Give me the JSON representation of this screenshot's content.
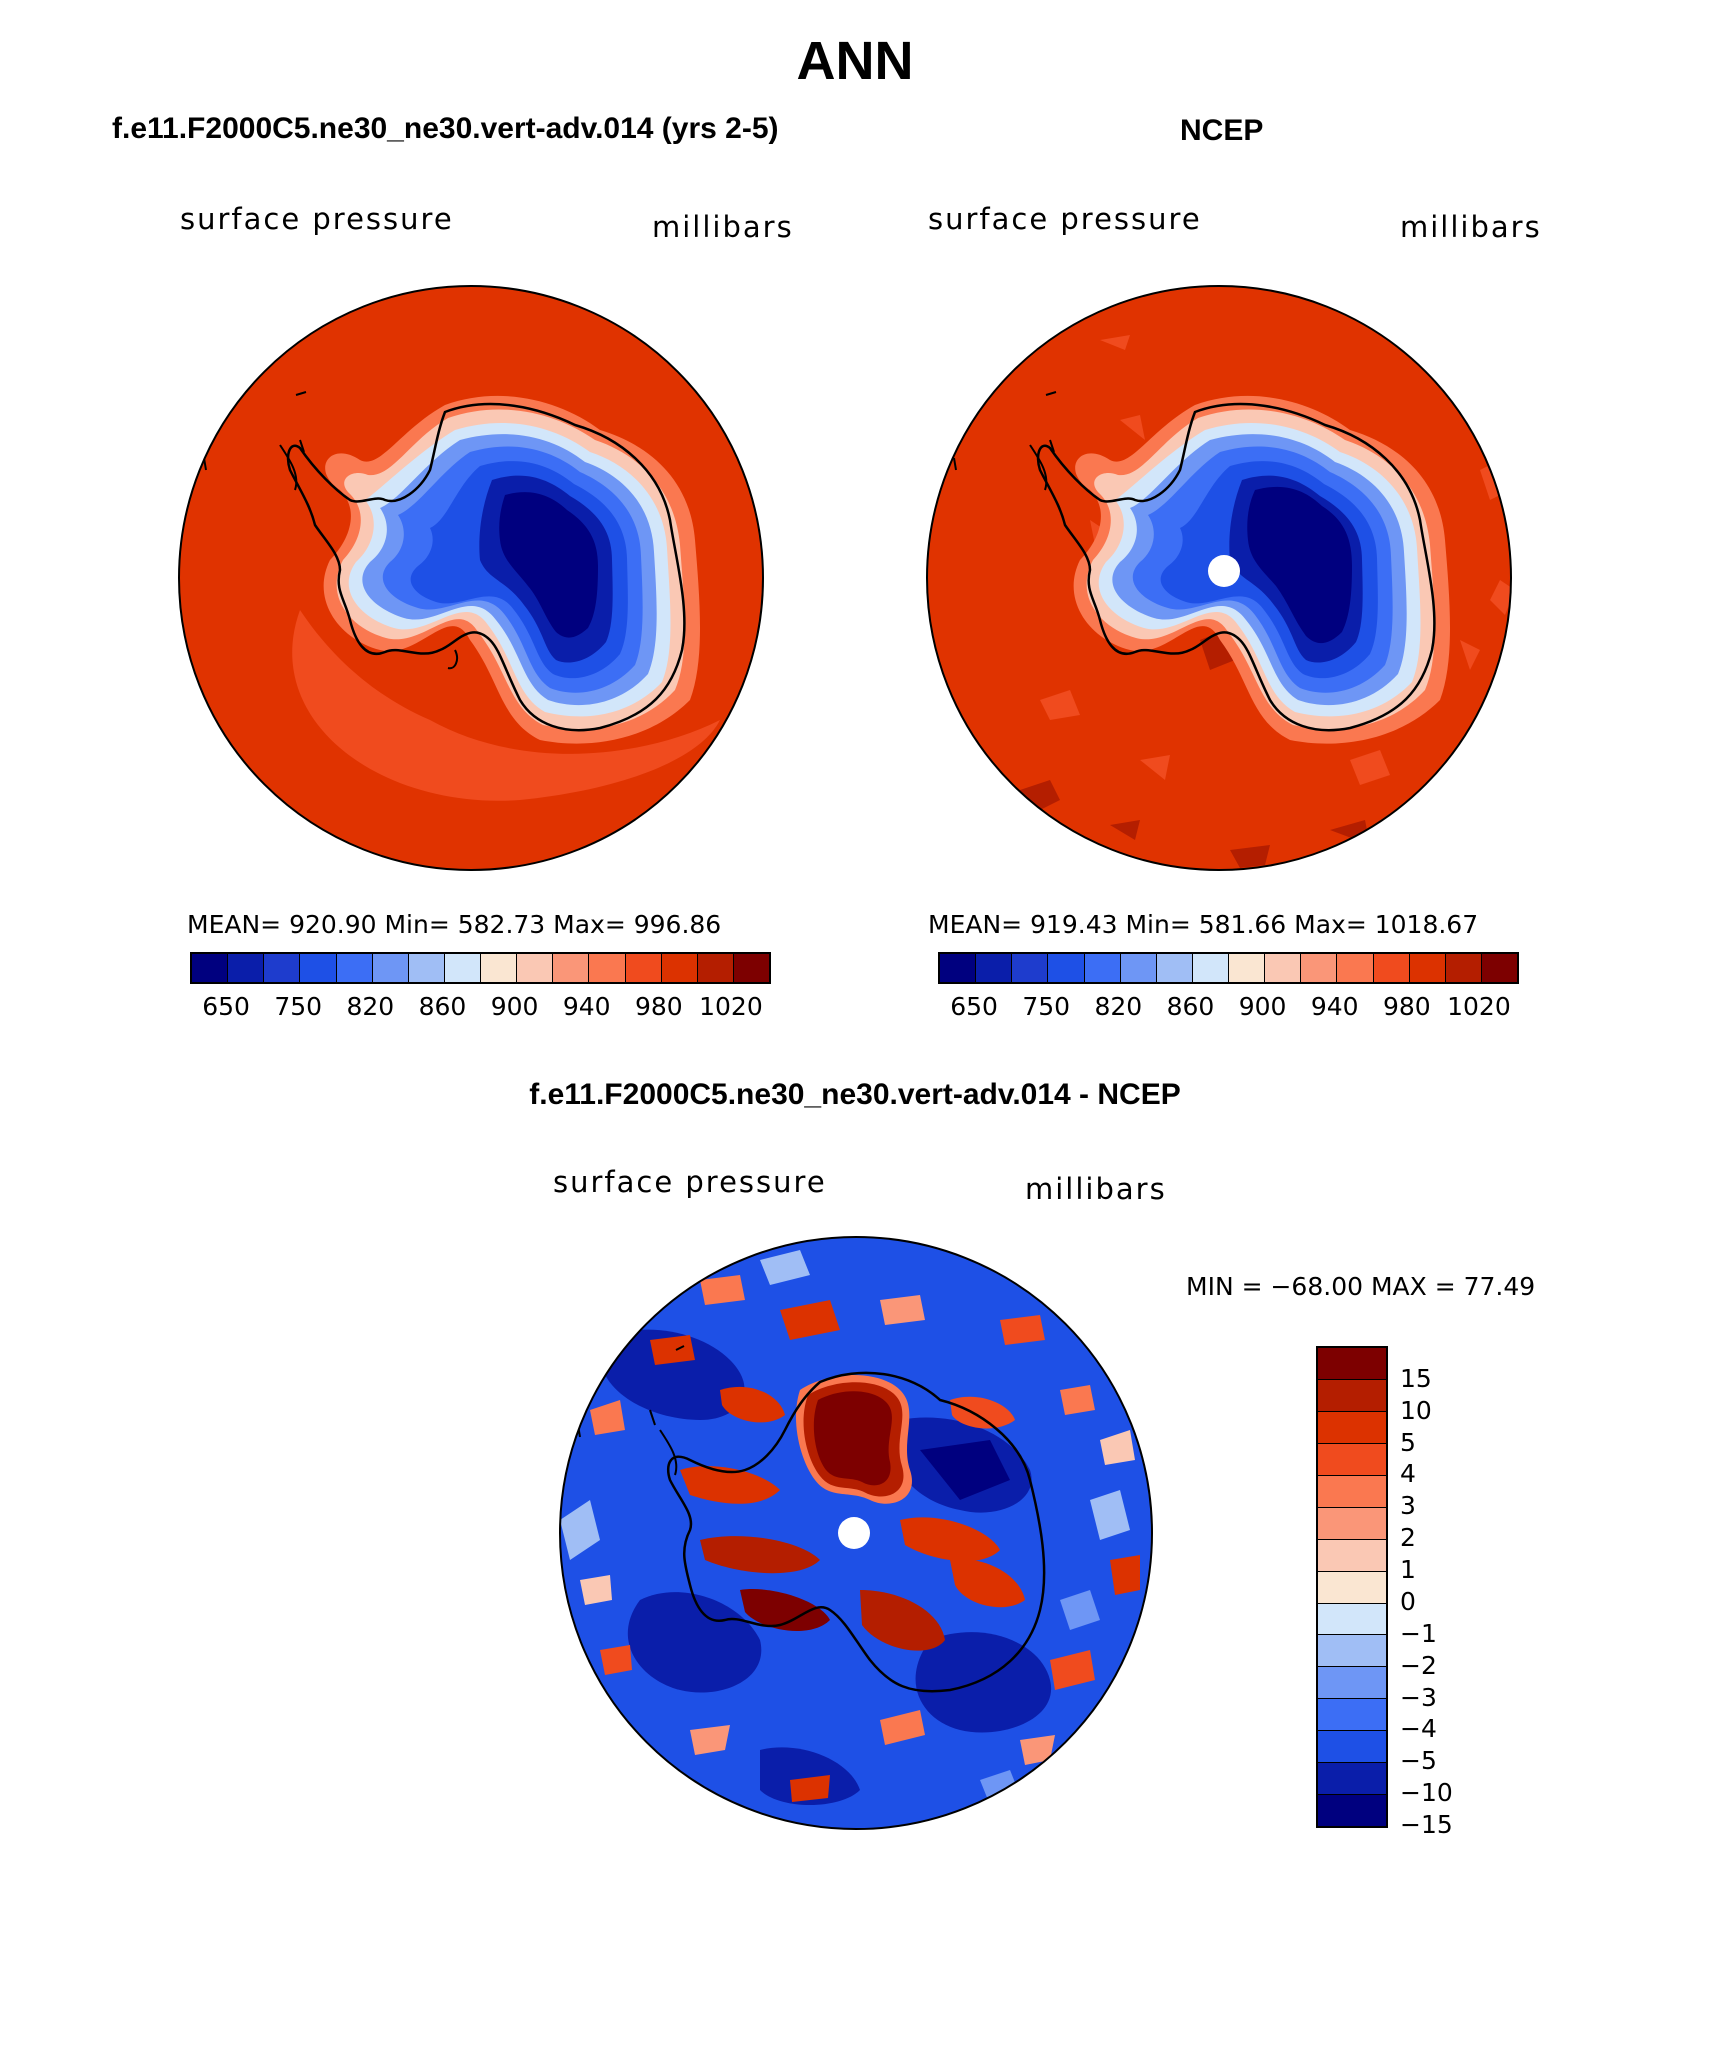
{
  "title": "ANN",
  "colors": {
    "pressure": [
      "#00007f",
      "#0a1eaa",
      "#1e3ccd",
      "#1e50e6",
      "#3c6ef5",
      "#6e96f5",
      "#a0bef5",
      "#d2e6fa",
      "#fae6d2",
      "#fac8b4",
      "#fa9678",
      "#fa7850",
      "#f04b1e",
      "#dc3200",
      "#b41e00",
      "#7d0000"
    ],
    "difference": [
      "#7d0000",
      "#b41e00",
      "#dc3200",
      "#f04b1e",
      "#fa7850",
      "#fa9678",
      "#fac8b4",
      "#fae6d2",
      "#d2e6fa",
      "#a0bef5",
      "#6e96f5",
      "#3c6ef5",
      "#1e50e6",
      "#0a1eaa",
      "#00007f"
    ]
  },
  "panels": {
    "model": {
      "title": "f.e11.F2000C5.ne30_ne30.vert-adv.014 (yrs 2-5)",
      "variable": "surface pressure",
      "units": "millibars",
      "stats": "MEAN= 920.90   Min= 582.73   Max= 996.86",
      "colorbar_labels": [
        "650",
        "750",
        "820",
        "860",
        "900",
        "940",
        "980",
        "1020"
      ]
    },
    "obs": {
      "title": "NCEP",
      "variable": "surface pressure",
      "units": "millibars",
      "stats": "MEAN= 919.43   Min= 581.66   Max= 1018.67",
      "colorbar_labels": [
        "650",
        "750",
        "820",
        "860",
        "900",
        "940",
        "980",
        "1020"
      ]
    },
    "diff": {
      "title": "f.e11.F2000C5.ne30_ne30.vert-adv.014 - NCEP",
      "variable": "surface pressure",
      "units": "millibars",
      "minmax": "MIN = −68.00 MAX =   77.49",
      "colorbar_labels": [
        "15",
        "10",
        "5",
        "4",
        "3",
        "2",
        "1",
        "0",
        "−1",
        "−2",
        "−3",
        "−4",
        "−5",
        "−10",
        "−15"
      ]
    }
  }
}
